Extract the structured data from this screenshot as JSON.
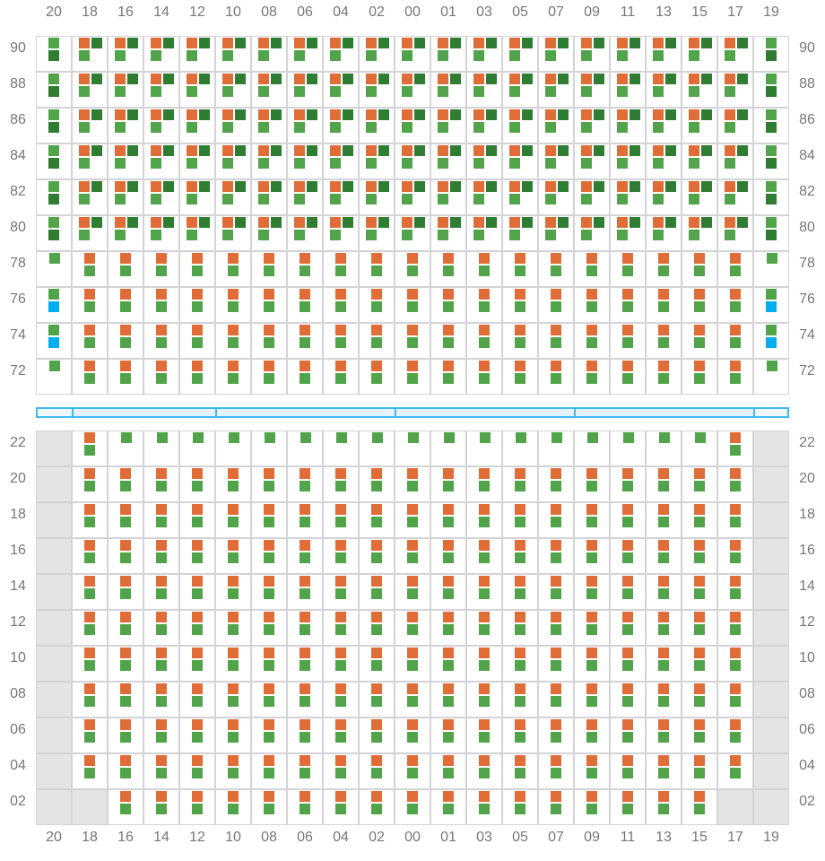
{
  "columns": [
    "20",
    "18",
    "16",
    "14",
    "12",
    "10",
    "08",
    "06",
    "04",
    "02",
    "00",
    "01",
    "03",
    "05",
    "07",
    "09",
    "11",
    "13",
    "15",
    "17",
    "19"
  ],
  "colors": {
    "orange": "#e06c37",
    "green": "#52a44a",
    "dark_green": "#2e7d32",
    "blue": "#00aeef",
    "unavailable": "#e4e4e6",
    "aisle_border": "#3dbbf0",
    "aisle_fill": "#e6f2fc"
  },
  "cell_legend_codes": {
    "od": "orange + dark green + green",
    "gd": "green over dark green",
    "g": "green",
    "og": "orange over green",
    "gb": "green over blue",
    "x": "unavailable"
  },
  "top_section": {
    "rows": [
      {
        "label": "90",
        "cells": "gd od od od od od od od od od od od od od od od od od od od gd"
      },
      {
        "label": "88",
        "cells": "gd od od od od od od od od od od od od od od od od od od od gd"
      },
      {
        "label": "86",
        "cells": "gd od od od od od od od od od od od od od od od od od od od gd"
      },
      {
        "label": "84",
        "cells": "gd od od od od od od od od od od od od od od od od od od od gd"
      },
      {
        "label": "82",
        "cells": "gd od od od od od od od od od od od od od od od od od od od gd"
      },
      {
        "label": "80",
        "cells": "gd od od od od od od od od od od od od od od od od od od od gd"
      },
      {
        "label": "78",
        "cells": "g og og og og og og og og og og og og og og og og og og og g"
      },
      {
        "label": "76",
        "cells": "gb og og og og og og og og og og og og og og og og og og og gb"
      },
      {
        "label": "74",
        "cells": "gb og og og og og og og og og og og og og og og og og og og gb"
      },
      {
        "label": "72",
        "cells": "g og og og og og og og og og og og og og og og og og og og g"
      }
    ]
  },
  "aisle_segments": [
    1,
    4,
    5,
    5,
    5,
    1
  ],
  "bottom_section": {
    "rows": [
      {
        "label": "22",
        "cells": "x og g g g g g g g g g g g g g g g g g og x"
      },
      {
        "label": "20",
        "cells": "x og og og og og og og og og og og og og og og og og og og x"
      },
      {
        "label": "18",
        "cells": "x og og og og og og og og og og og og og og og og og og og x"
      },
      {
        "label": "16",
        "cells": "x og og og og og og og og og og og og og og og og og og og x"
      },
      {
        "label": "14",
        "cells": "x og og og og og og og og og og og og og og og og og og og x"
      },
      {
        "label": "12",
        "cells": "x og og og og og og og og og og og og og og og og og og og x"
      },
      {
        "label": "10",
        "cells": "x og og og og og og og og og og og og og og og og og og og x"
      },
      {
        "label": "08",
        "cells": "x og og og og og og og og og og og og og og og og og og og x"
      },
      {
        "label": "06",
        "cells": "x og og og og og og og og og og og og og og og og og og og x"
      },
      {
        "label": "04",
        "cells": "x og og og og og og og og og og og og og og og og og og og x"
      },
      {
        "label": "02",
        "cells": "x x og og og og og og og og og og og og og og og og og x x"
      }
    ]
  }
}
